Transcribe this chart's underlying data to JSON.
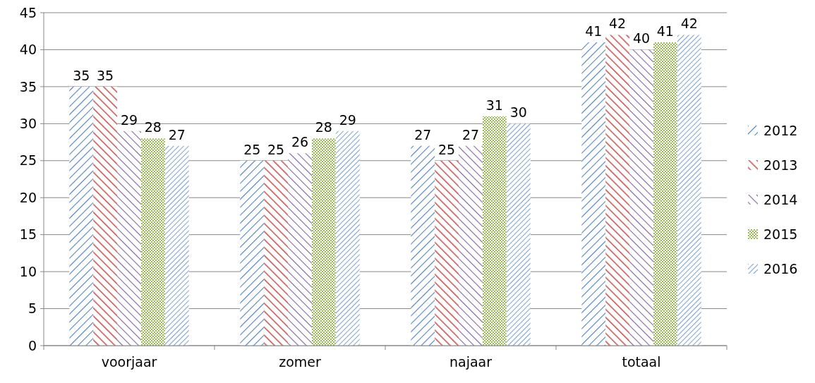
{
  "chart_data": {
    "type": "bar",
    "categories": [
      "voorjaar",
      "zomer",
      "najaar",
      "totaal"
    ],
    "series": [
      {
        "name": "2012",
        "color": "#4f81bd",
        "values": [
          35,
          25,
          27,
          41
        ]
      },
      {
        "name": "2013",
        "color": "#c0504d",
        "values": [
          35,
          25,
          25,
          42
        ]
      },
      {
        "name": "2014",
        "color": "#8064a2",
        "values": [
          29,
          26,
          27,
          40
        ]
      },
      {
        "name": "2015",
        "color": "#9bbb59",
        "values": [
          28,
          28,
          31,
          41
        ]
      },
      {
        "name": "2016",
        "color": "#4f81bd",
        "values": [
          27,
          29,
          30,
          42
        ]
      }
    ],
    "ylim": [
      0,
      45
    ],
    "yticks": [
      0,
      5,
      10,
      15,
      20,
      25,
      30,
      35,
      40,
      45
    ],
    "grid": "y",
    "legend": "right",
    "data_labels": true
  }
}
